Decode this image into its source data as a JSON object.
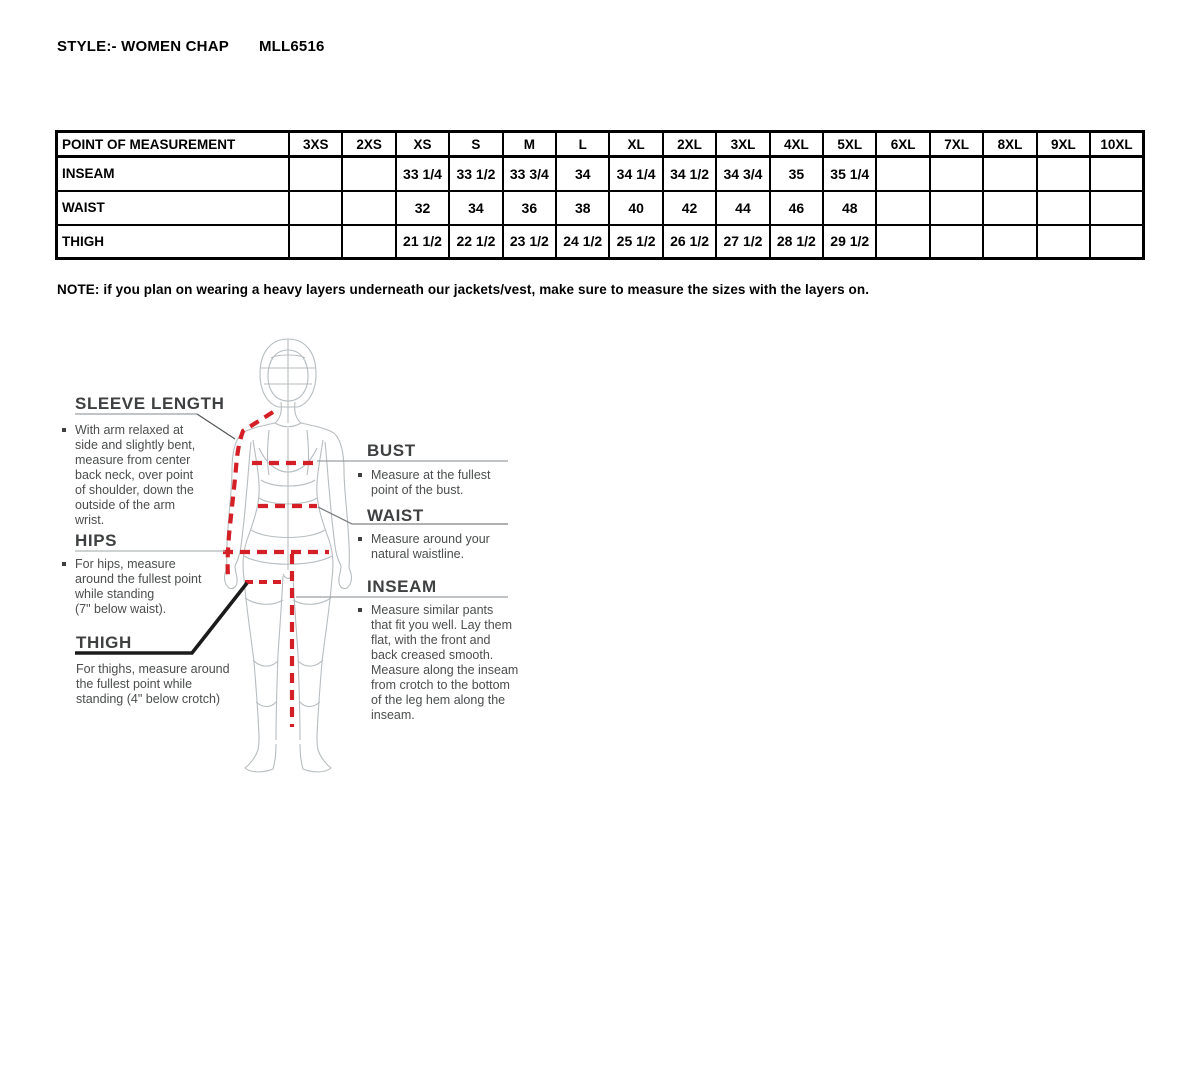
{
  "header": {
    "style_label": "STYLE:- WOMEN CHAP",
    "style_code": "MLL6516"
  },
  "table": {
    "header": [
      "POINT OF MEASUREMENT",
      "3XS",
      "2XS",
      "XS",
      "S",
      "M",
      "L",
      "XL",
      "2XL",
      "3XL",
      "4XL",
      "5XL",
      "6XL",
      "7XL",
      "8XL",
      "9XL",
      "10XL"
    ],
    "rows": [
      {
        "label": "INSEAM",
        "values": [
          "",
          "",
          "33 1/4",
          "33 1/2",
          "33 3/4",
          "34",
          "34 1/4",
          "34 1/2",
          "34 3/4",
          "35",
          "35 1/4",
          "",
          "",
          "",
          "",
          ""
        ]
      },
      {
        "label": "WAIST",
        "values": [
          "",
          "",
          "32",
          "34",
          "36",
          "38",
          "40",
          "42",
          "44",
          "46",
          "48",
          "",
          "",
          "",
          "",
          ""
        ]
      },
      {
        "label": "THIGH",
        "values": [
          "",
          "",
          "21 1/2",
          "22 1/2",
          "23 1/2",
          "24 1/2",
          "25 1/2",
          "26 1/2",
          "27 1/2",
          "28 1/2",
          "29 1/2",
          "",
          "",
          "",
          "",
          ""
        ]
      }
    ]
  },
  "note": "NOTE: if you plan on wearing a heavy layers underneath our jackets/vest, make sure to measure the sizes with the layers on.",
  "diagram": {
    "sleeve": {
      "heading": "SLEEVE LENGTH",
      "text": "With arm relaxed at\nside and slightly bent,\nmeasure from center\nback neck, over point\nof shoulder, down the\noutside of the arm\nwrist."
    },
    "hips": {
      "heading": "HIPS",
      "text": "For hips, measure\naround the fullest point\nwhile standing\n(7\" below waist)."
    },
    "thigh": {
      "heading": "THIGH",
      "text": "For thighs, measure around\nthe fullest point while\nstanding (4\" below crotch)"
    },
    "bust": {
      "heading": "BUST",
      "text": "Measure at the fullest\npoint of the bust."
    },
    "waist": {
      "heading": "WAIST",
      "text": "Measure around your\nnatural waistline."
    },
    "inseam": {
      "heading": "INSEAM",
      "text": "Measure similar pants\nthat fit you well. Lay them\nflat, with the front and\nback creased smooth.\nMeasure along the inseam\nfrom crotch to the bottom\nof the leg hem along the\ninseam."
    }
  },
  "colors": {
    "dash_red": "#d41f26",
    "figure_gray": "#b7bdc0",
    "leader_gray": "#9aa0a3",
    "heading_gray": "#3e4041"
  }
}
